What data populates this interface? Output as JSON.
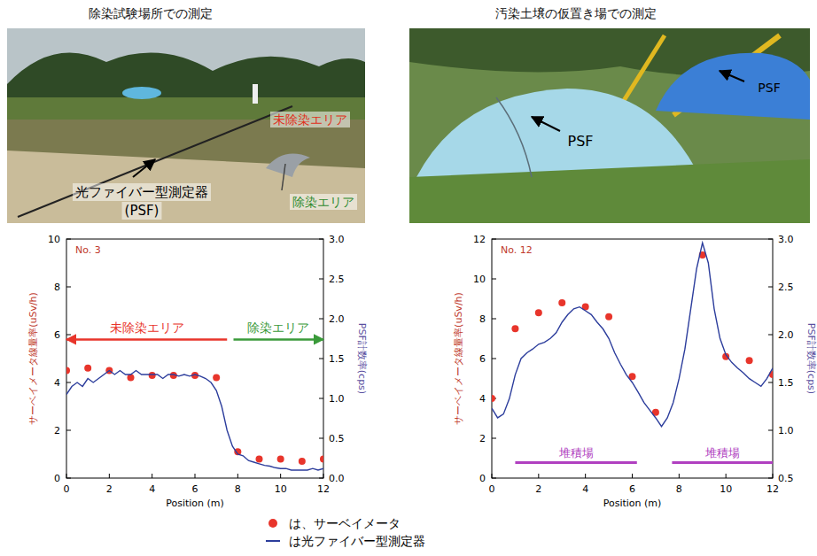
{
  "photos": [
    {
      "title": "除染試験場所での測定",
      "labels": [
        "未除染エリア",
        "光ファイバー型測定器",
        "(PSF)",
        "除染エリア"
      ]
    },
    {
      "title": "汚染土壌の仮置き場での測定",
      "labels": [
        "PSF",
        "PSF"
      ]
    }
  ],
  "chart_data": [
    {
      "type": "line",
      "title": "No. 3",
      "x_label": "Position (m)",
      "y_label": "サーベイメータ線量率(uSv/h)",
      "y2_label": "PSF計数率(cps)",
      "xlim": [
        0,
        12
      ],
      "xticks": [
        0,
        2,
        4,
        6,
        8,
        10,
        12
      ],
      "ylim": [
        0,
        10
      ],
      "yticks": [
        0,
        2,
        4,
        6,
        8,
        10
      ],
      "y2lim": [
        0,
        3
      ],
      "y2ticks": [
        {
          "value": 0,
          "label": "0.0"
        },
        0.5,
        {
          "value": 1,
          "label": "1.0"
        },
        1.5,
        {
          "value": 2,
          "label": "2.0"
        },
        2.5,
        {
          "value": 3,
          "label": "3.0"
        }
      ],
      "grid": false,
      "legend": "bottom",
      "series": [
        {
          "name": "は、サーベイメータ",
          "type": "scatter",
          "marker": "circle",
          "color": "#e8352b",
          "x": [
            0,
            1,
            2,
            3,
            4,
            5,
            6,
            7,
            8,
            9,
            10,
            11,
            12
          ],
          "values": [
            4.5,
            4.6,
            4.5,
            4.2,
            4.3,
            4.3,
            4.3,
            4.2,
            1.1,
            0.8,
            0.8,
            0.7,
            0.8
          ]
        },
        {
          "name": "は光ファイバー型測定器",
          "type": "line",
          "line_style": "solid",
          "color": "#2c3d9c",
          "axis": "y2",
          "x": [
            0,
            0.25,
            0.5,
            0.75,
            1,
            1.25,
            1.5,
            1.75,
            2,
            2.25,
            2.5,
            2.75,
            3,
            3.25,
            3.5,
            3.75,
            4,
            4.25,
            4.5,
            4.75,
            5,
            5.25,
            5.5,
            5.75,
            6,
            6.25,
            6.5,
            6.75,
            7,
            7.25,
            7.5,
            7.75,
            8,
            8.25,
            8.5,
            8.75,
            9,
            9.25,
            9.5,
            9.75,
            10,
            10.25,
            10.5,
            10.75,
            11,
            11.25,
            11.5,
            11.75,
            12
          ],
          "values": [
            1.05,
            1.15,
            1.2,
            1.15,
            1.25,
            1.2,
            1.25,
            1.3,
            1.35,
            1.3,
            1.35,
            1.3,
            1.3,
            1.35,
            1.3,
            1.3,
            1.3,
            1.3,
            1.25,
            1.3,
            1.3,
            1.28,
            1.3,
            1.28,
            1.3,
            1.28,
            1.25,
            1.2,
            1.1,
            0.9,
            0.6,
            0.4,
            0.3,
            0.28,
            0.22,
            0.2,
            0.18,
            0.16,
            0.15,
            0.13,
            0.12,
            0.12,
            0.1,
            0.1,
            0.1,
            0.1,
            0.12,
            0.1,
            0.12
          ]
        }
      ],
      "annotations": [
        {
          "text": "未除染エリア",
          "shape": "arrow",
          "x": [
            7.5,
            0
          ],
          "color": "#e8352b"
        },
        {
          "text": "除染エリア",
          "shape": "arrow",
          "x": [
            7.8,
            12
          ],
          "color": "#3a9a3a"
        }
      ]
    },
    {
      "type": "line",
      "title": "No. 12",
      "x_label": "Position (m)",
      "y_label": "サーベイメータ線量率(uSv/h)",
      "y2_label": "PSF計数率(cps)",
      "xlim": [
        0,
        12
      ],
      "xticks": [
        0,
        2,
        4,
        6,
        8,
        10,
        12
      ],
      "ylim": [
        0,
        12
      ],
      "yticks": [
        0,
        2,
        4,
        6,
        8,
        10,
        12
      ],
      "y2lim": [
        0.5,
        3
      ],
      "y2ticks": [
        0.5,
        {
          "value": 1,
          "label": "1.0"
        },
        1.5,
        {
          "value": 2,
          "label": "2.0"
        },
        2.5,
        {
          "value": 3,
          "label": "3.0"
        }
      ],
      "grid": false,
      "series": [
        {
          "type": "scatter",
          "marker": "circle",
          "color": "#e8352b",
          "x": [
            0,
            1,
            2,
            3,
            4,
            5,
            6,
            7,
            9,
            10,
            11,
            12
          ],
          "values": [
            4.0,
            7.5,
            8.3,
            8.8,
            8.6,
            8.1,
            5.1,
            3.3,
            11.2,
            6.1,
            5.9,
            5.2
          ]
        },
        {
          "type": "line",
          "line_style": "solid",
          "color": "#2c3d9c",
          "axis": "y2",
          "x": [
            0,
            0.25,
            0.5,
            0.75,
            1,
            1.25,
            1.5,
            1.75,
            2,
            2.25,
            2.5,
            2.75,
            3,
            3.25,
            3.5,
            3.75,
            4,
            4.25,
            4.5,
            4.75,
            5,
            5.25,
            5.5,
            5.75,
            6,
            6.25,
            6.5,
            6.75,
            7,
            7.25,
            7.5,
            7.75,
            8,
            8.25,
            8.5,
            8.75,
            9,
            9.25,
            9.5,
            9.75,
            10,
            10.25,
            10.5,
            10.75,
            11,
            11.25,
            11.5,
            11.75,
            12
          ],
          "values": [
            1.23,
            1.13,
            1.17,
            1.33,
            1.58,
            1.75,
            1.81,
            1.85,
            1.9,
            1.92,
            1.96,
            2.02,
            2.13,
            2.21,
            2.27,
            2.29,
            2.25,
            2.21,
            2.13,
            2.06,
            1.96,
            1.81,
            1.69,
            1.58,
            1.5,
            1.4,
            1.29,
            1.21,
            1.13,
            1.04,
            1.13,
            1.29,
            1.54,
            1.85,
            2.27,
            2.69,
            2.96,
            2.75,
            2.27,
            1.96,
            1.79,
            1.71,
            1.65,
            1.6,
            1.54,
            1.5,
            1.46,
            1.54,
            1.65
          ]
        }
      ],
      "annotations": [
        {
          "text": "堆積場",
          "shape": "bar",
          "x": [
            1,
            6.2
          ],
          "color": "#b040c0"
        },
        {
          "text": "堆積場",
          "shape": "bar",
          "x": [
            7.7,
            12
          ],
          "color": "#b040c0"
        }
      ]
    }
  ]
}
